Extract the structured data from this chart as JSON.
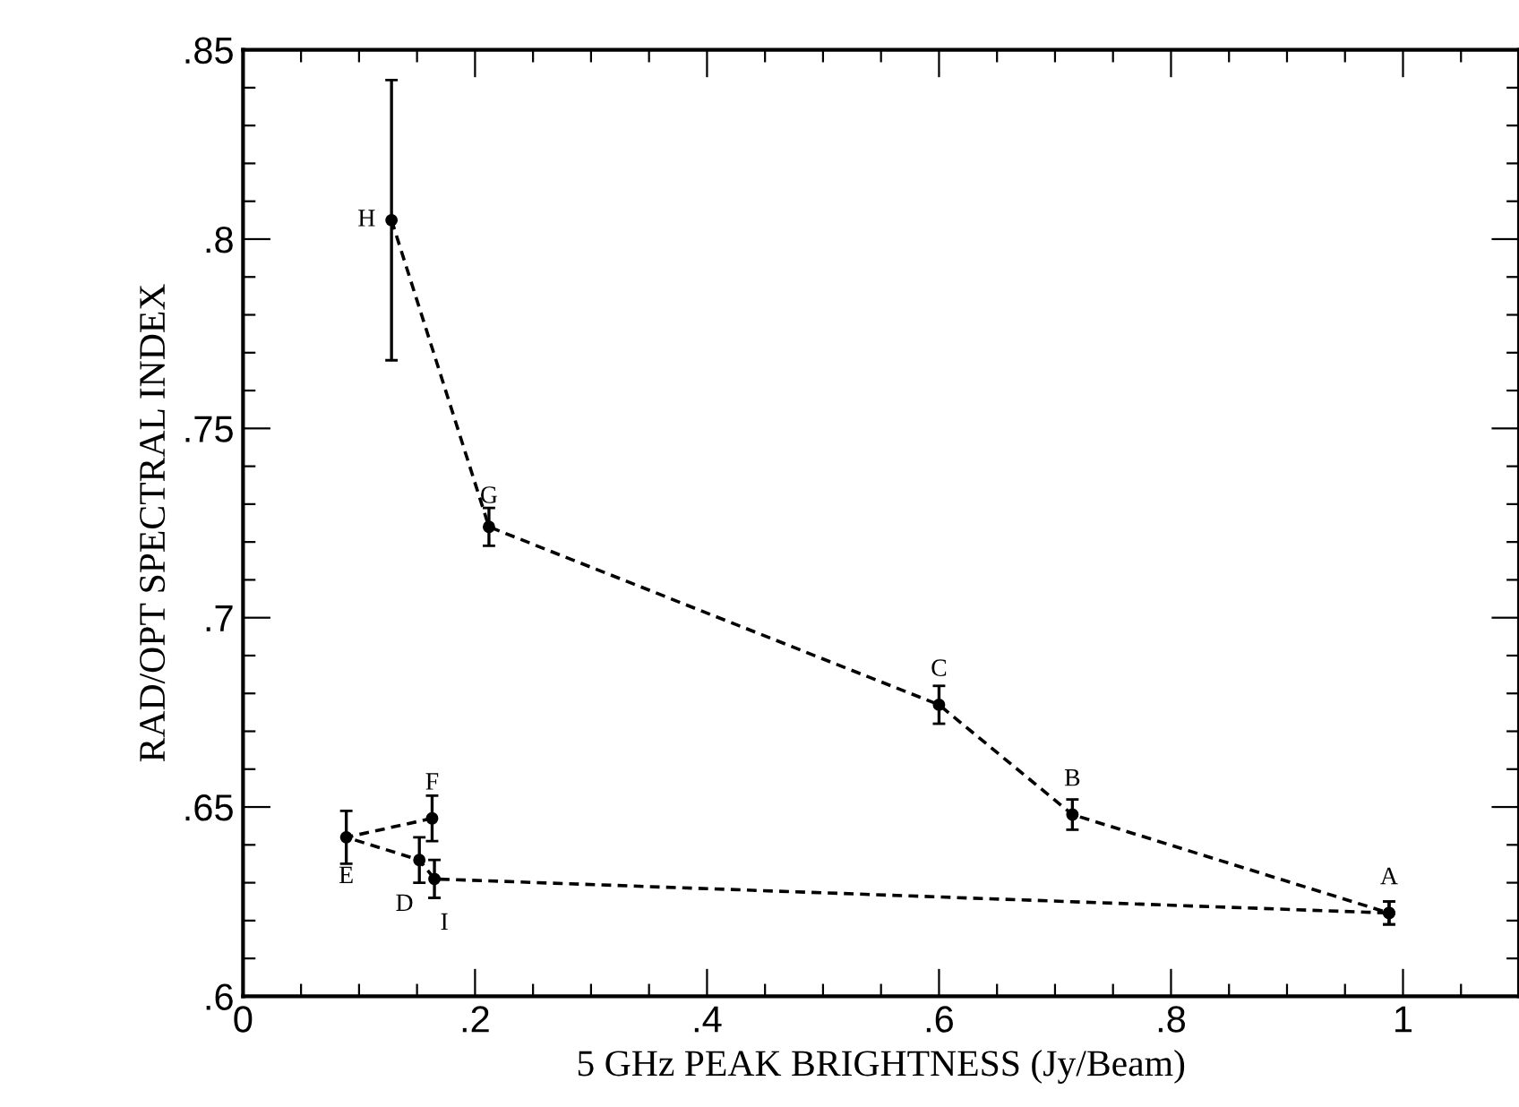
{
  "chart_data": {
    "type": "line",
    "xlabel": "5 GHz PEAK BRIGHTNESS (Jy/Beam)",
    "ylabel": "RAD/OPT SPECTRAL INDEX",
    "series": [
      {
        "color": "#000000",
        "x": [
          0.128,
          0.212,
          0.6,
          0.715,
          0.988
        ],
        "values": [
          0.805,
          0.724,
          0.677,
          0.648,
          0.622
        ],
        "errors": [
          0.037,
          0.005,
          0.005,
          0.004,
          0.003
        ]
      },
      {
        "color": "#000000",
        "x": [
          0.163,
          0.089,
          0.152,
          0.165,
          0.988
        ],
        "values": [
          0.647,
          0.642,
          0.636,
          0.631,
          0.622
        ],
        "errors": [
          0.006,
          0.007,
          0.006,
          0.005,
          0.003
        ]
      }
    ],
    "annotations": [
      {
        "text": "H",
        "x": 0.128,
        "y": 0.805
      },
      {
        "text": "G",
        "x": 0.212,
        "y": 0.724
      },
      {
        "text": "C",
        "x": 0.6,
        "y": 0.677
      },
      {
        "text": "B",
        "x": 0.715,
        "y": 0.648
      },
      {
        "text": "A",
        "x": 0.988,
        "y": 0.622
      },
      {
        "text": "F",
        "x": 0.163,
        "y": 0.647
      },
      {
        "text": "E",
        "x": 0.089,
        "y": 0.642
      },
      {
        "text": "D",
        "x": 0.152,
        "y": 0.636
      },
      {
        "text": "I",
        "x": 0.165,
        "y": 0.631
      }
    ],
    "xlim": [
      0,
      1.1
    ],
    "ylim": [
      0.6,
      0.85
    ],
    "xticks": [
      0,
      {
        "value": 0.05,
        "label": null
      },
      {
        "value": 0.1,
        "label": null
      },
      {
        "value": 0.15,
        "label": null
      },
      {
        "value": 0.2,
        "label": ".2"
      },
      {
        "value": 0.25,
        "label": null
      },
      {
        "value": 0.3,
        "label": null
      },
      {
        "value": 0.35,
        "label": null
      },
      {
        "value": 0.4,
        "label": ".4"
      },
      {
        "value": 0.45,
        "label": null
      },
      {
        "value": 0.5,
        "label": null
      },
      {
        "value": 0.55,
        "label": null
      },
      {
        "value": 0.6,
        "label": ".6"
      },
      {
        "value": 0.65,
        "label": null
      },
      {
        "value": 0.7,
        "label": null
      },
      {
        "value": 0.75,
        "label": null
      },
      {
        "value": 0.8,
        "label": ".8"
      },
      {
        "value": 0.85,
        "label": null
      },
      {
        "value": 0.9,
        "label": null
      },
      {
        "value": 0.95,
        "label": null
      },
      1,
      {
        "value": 1.05,
        "label": null
      }
    ],
    "yticks": [
      {
        "value": 0.6,
        "label": ".6"
      },
      {
        "value": 0.61,
        "label": null
      },
      {
        "value": 0.62,
        "label": null
      },
      {
        "value": 0.63,
        "label": null
      },
      {
        "value": 0.64,
        "label": null
      },
      {
        "value": 0.65,
        "label": ".65"
      },
      {
        "value": 0.66,
        "label": null
      },
      {
        "value": 0.67,
        "label": null
      },
      {
        "value": 0.68,
        "label": null
      },
      {
        "value": 0.69,
        "label": null
      },
      {
        "value": 0.7,
        "label": ".7"
      },
      {
        "value": 0.71,
        "label": null
      },
      {
        "value": 0.72,
        "label": null
      },
      {
        "value": 0.73,
        "label": null
      },
      {
        "value": 0.74,
        "label": null
      },
      {
        "value": 0.75,
        "label": ".75"
      },
      {
        "value": 0.76,
        "label": null
      },
      {
        "value": 0.77,
        "label": null
      },
      {
        "value": 0.78,
        "label": null
      },
      {
        "value": 0.79,
        "label": null
      },
      {
        "value": 0.8,
        "label": ".8"
      },
      {
        "value": 0.81,
        "label": null
      },
      {
        "value": 0.82,
        "label": null
      },
      {
        "value": 0.83,
        "label": null
      },
      {
        "value": 0.84,
        "label": null
      },
      {
        "value": 0.85,
        "label": ".85"
      }
    ],
    "marker": "circle",
    "line_style": "dashed",
    "grid": false
  }
}
